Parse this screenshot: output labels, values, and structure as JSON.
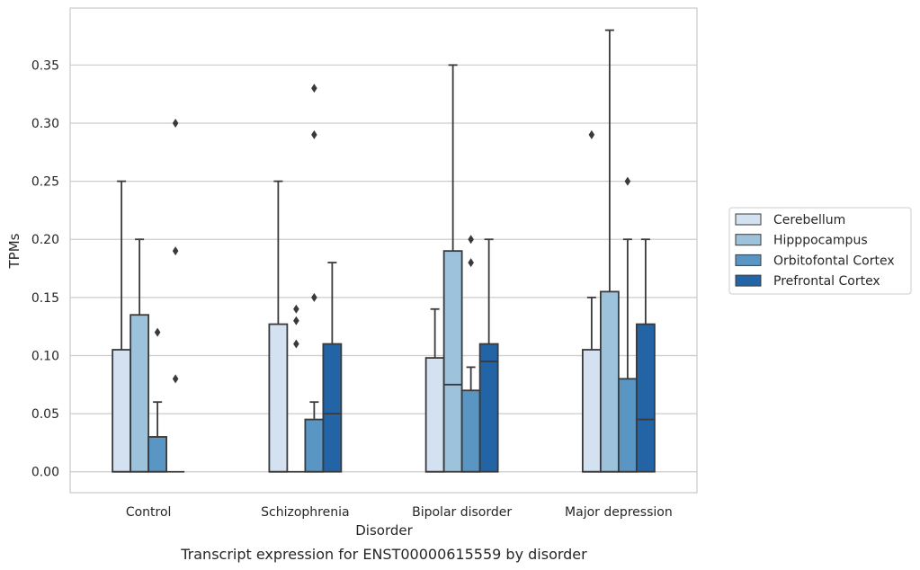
{
  "chart_data": {
    "type": "boxplot",
    "caption": "Transcript expression for ENST00000615559 by disorder",
    "xlabel": "Disorder",
    "ylabel": "TPMs",
    "ylim": [
      -0.018,
      0.399
    ],
    "yticks": [
      "0.00",
      "0.05",
      "0.10",
      "0.15",
      "0.20",
      "0.25",
      "0.30",
      "0.35"
    ],
    "ytick_values": [
      0,
      0.05,
      0.1,
      0.15,
      0.2,
      0.25,
      0.3,
      0.35
    ],
    "grid": "horizontal",
    "legend_placement": "right",
    "categories": [
      "Control",
      "Schizophrenia",
      "Bipolar disorder",
      "Major depression"
    ],
    "series": [
      {
        "name": "Cerebellum",
        "color": "#d3e1f1",
        "boxes": [
          {
            "q1": 0,
            "median": 0,
            "q3": 0.105,
            "whisker_low": 0,
            "whisker_high": 0.25,
            "outliers": []
          },
          {
            "q1": 0,
            "median": 0,
            "q3": 0.127,
            "whisker_low": 0,
            "whisker_high": 0.25,
            "outliers": []
          },
          {
            "q1": 0,
            "median": 0,
            "q3": 0.098,
            "whisker_low": 0,
            "whisker_high": 0.14,
            "outliers": []
          },
          {
            "q1": 0,
            "median": 0,
            "q3": 0.105,
            "whisker_low": 0,
            "whisker_high": 0.15,
            "outliers": [
              0.29
            ]
          }
        ]
      },
      {
        "name": "Hipppocampus",
        "color": "#9dc3dc",
        "boxes": [
          {
            "q1": 0,
            "median": 0,
            "q3": 0.135,
            "whisker_low": 0,
            "whisker_high": 0.2,
            "outliers": []
          },
          {
            "q1": 0,
            "median": 0,
            "q3": 0,
            "whisker_low": 0,
            "whisker_high": 0,
            "outliers": [
              0.14,
              0.13,
              0.11
            ]
          },
          {
            "q1": 0,
            "median": 0.075,
            "q3": 0.19,
            "whisker_low": 0,
            "whisker_high": 0.35,
            "outliers": []
          },
          {
            "q1": 0,
            "median": 0,
            "q3": 0.155,
            "whisker_low": 0,
            "whisker_high": 0.38,
            "outliers": []
          }
        ]
      },
      {
        "name": "Orbitofontal Cortex",
        "color": "#5a96c4",
        "boxes": [
          {
            "q1": 0,
            "median": 0,
            "q3": 0.03,
            "whisker_low": 0,
            "whisker_high": 0.06,
            "outliers": [
              0.12
            ]
          },
          {
            "q1": 0,
            "median": 0,
            "q3": 0.045,
            "whisker_low": 0,
            "whisker_high": 0.06,
            "outliers": [
              0.15,
              0.29,
              0.33
            ]
          },
          {
            "q1": 0,
            "median": 0,
            "q3": 0.07,
            "whisker_low": 0,
            "whisker_high": 0.09,
            "outliers": [
              0.18,
              0.2
            ]
          },
          {
            "q1": 0,
            "median": 0,
            "q3": 0.08,
            "whisker_low": 0,
            "whisker_high": 0.2,
            "outliers": [
              0.25
            ]
          }
        ]
      },
      {
        "name": "Prefrontal Cortex",
        "color": "#2364a6",
        "boxes": [
          {
            "q1": 0,
            "median": 0,
            "q3": 0,
            "whisker_low": 0,
            "whisker_high": 0,
            "outliers": [
              0.3,
              0.19,
              0.08
            ]
          },
          {
            "q1": 0,
            "median": 0.05,
            "q3": 0.11,
            "whisker_low": 0,
            "whisker_high": 0.18,
            "outliers": []
          },
          {
            "q1": 0,
            "median": 0.095,
            "q3": 0.11,
            "whisker_low": 0,
            "whisker_high": 0.2,
            "outliers": []
          },
          {
            "q1": 0,
            "median": 0.045,
            "q3": 0.127,
            "whisker_low": 0,
            "whisker_high": 0.2,
            "outliers": []
          }
        ]
      }
    ]
  }
}
